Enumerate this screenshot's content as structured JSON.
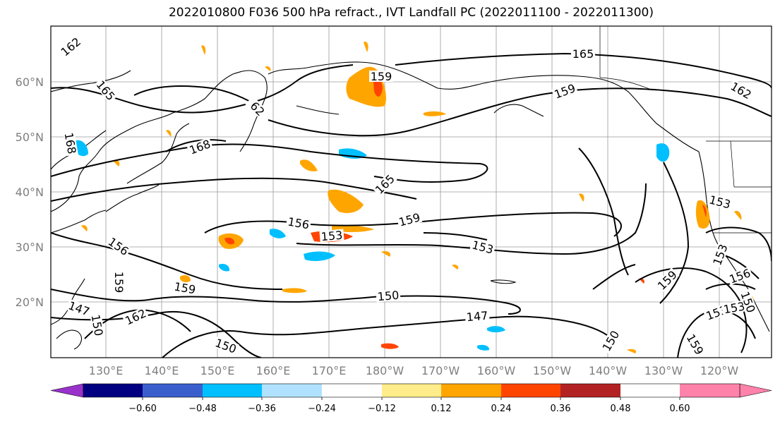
{
  "title": "2022010800 F036 500 hPa refract., IVT Landfall PC (2022011100 - 2022011300)",
  "lat_ticks": [
    "60°N",
    "50°N",
    "40°N",
    "30°N",
    "20°N"
  ],
  "lon_ticks": [
    "130°E",
    "140°E",
    "150°E",
    "160°E",
    "170°E",
    "180°W",
    "170°W",
    "160°W",
    "150°W",
    "140°W",
    "130°W",
    "120°W"
  ],
  "contour_labels": [
    "162",
    "165",
    "62",
    "159",
    "165",
    "159",
    "162",
    "168",
    "168",
    "165",
    "153",
    "156",
    "153",
    "159",
    "156",
    "153",
    "159",
    "153",
    "159",
    "156",
    "150",
    "147",
    "150",
    "162",
    "147",
    "150",
    "150",
    "159",
    "153",
    "153",
    "150",
    "159"
  ],
  "colorbar": {
    "colors": [
      "#9932cc",
      "#000080",
      "#3a5fcd",
      "#00bfff",
      "#b0e2ff",
      "#ffffff",
      "#ffec8b",
      "#ffa500",
      "#ff4500",
      "#b22222",
      "#ff82ab"
    ],
    "tick_labels": [
      "−0.60",
      "−0.48",
      "−0.36",
      "−0.24",
      "−0.12",
      "0.12",
      "0.24",
      "0.36",
      "0.48",
      "0.60"
    ]
  }
}
